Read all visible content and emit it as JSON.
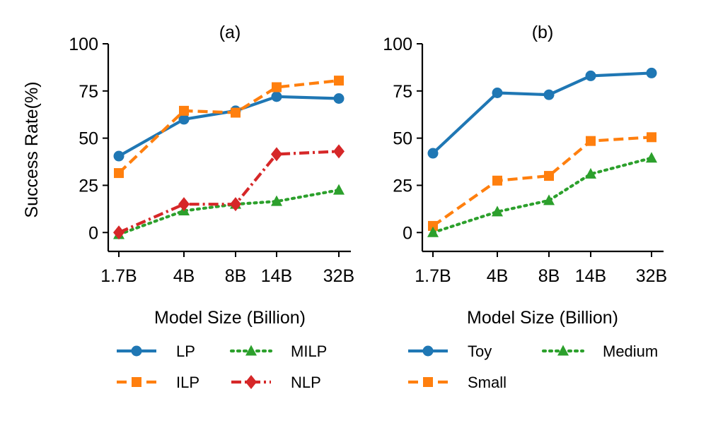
{
  "chart_data": [
    {
      "type": "line",
      "title": "(a)",
      "xlabel": "Model Size (Billion)",
      "ylabel": "Success Rate(%)",
      "ylim": [
        -10,
        100
      ],
      "yticks": [
        0,
        25,
        50,
        75,
        100
      ],
      "ytick_labels": [
        "0",
        "25",
        "50",
        "75",
        "100"
      ],
      "categories": [
        "1.7B",
        "4B",
        "8B",
        "14B",
        "32B"
      ],
      "series": [
        {
          "name": "LP",
          "values": [
            40.5,
            60,
            64.5,
            72,
            71
          ],
          "color": "#1f77b4",
          "marker": "circle",
          "dash": "solid"
        },
        {
          "name": "ILP",
          "values": [
            31.5,
            64.5,
            63.5,
            77,
            80.5
          ],
          "color": "#ff7f0e",
          "marker": "square",
          "dash": "dashed"
        },
        {
          "name": "MILP",
          "values": [
            -1,
            11.5,
            15,
            16.5,
            22.5
          ],
          "color": "#2ca02c",
          "marker": "triangle",
          "dash": "dotted"
        },
        {
          "name": "NLP",
          "values": [
            0,
            15,
            15,
            41.5,
            43
          ],
          "color": "#d62728",
          "marker": "diamond",
          "dash": "dashdot"
        }
      ]
    },
    {
      "type": "line",
      "title": "(b)",
      "xlabel": "Model Size (Billion)",
      "ylabel": "",
      "ylim": [
        -10,
        100
      ],
      "yticks": [
        0,
        25,
        50,
        75,
        100
      ],
      "ytick_labels": [
        "0",
        "25",
        "50",
        "75",
        "100"
      ],
      "categories": [
        "1.7B",
        "4B",
        "8B",
        "14B",
        "32B"
      ],
      "series": [
        {
          "name": "Toy",
          "values": [
            42,
            74,
            73,
            83,
            84.5
          ],
          "color": "#1f77b4",
          "marker": "circle",
          "dash": "solid"
        },
        {
          "name": "Small",
          "values": [
            3.5,
            27.5,
            30,
            48.5,
            50.5
          ],
          "color": "#ff7f0e",
          "marker": "square",
          "dash": "dashed"
        },
        {
          "name": "Medium",
          "values": [
            0,
            11,
            17,
            31,
            39.5
          ],
          "color": "#2ca02c",
          "marker": "triangle",
          "dash": "dotted"
        }
      ]
    }
  ]
}
